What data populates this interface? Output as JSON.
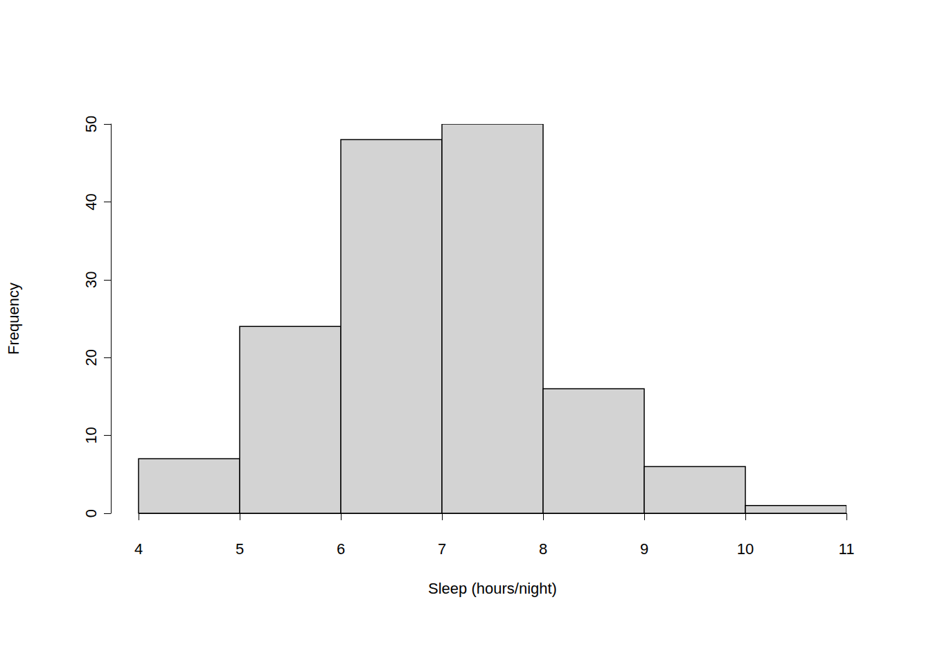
{
  "chart_data": {
    "type": "histogram",
    "x_label": "Sleep (hours/night)",
    "y_label": "Frequency",
    "bins": [
      4,
      5,
      6,
      7,
      8,
      9,
      10,
      11
    ],
    "values": [
      7,
      24,
      48,
      50,
      16,
      6,
      1
    ],
    "color": "#d3d3d3",
    "xlim": [
      4,
      11
    ],
    "xticks": [
      4,
      5,
      6,
      7,
      8,
      9,
      10,
      11
    ],
    "ylim": [
      0,
      50
    ],
    "yticks": [
      0,
      10,
      20,
      30,
      40,
      50
    ],
    "grid": false
  }
}
